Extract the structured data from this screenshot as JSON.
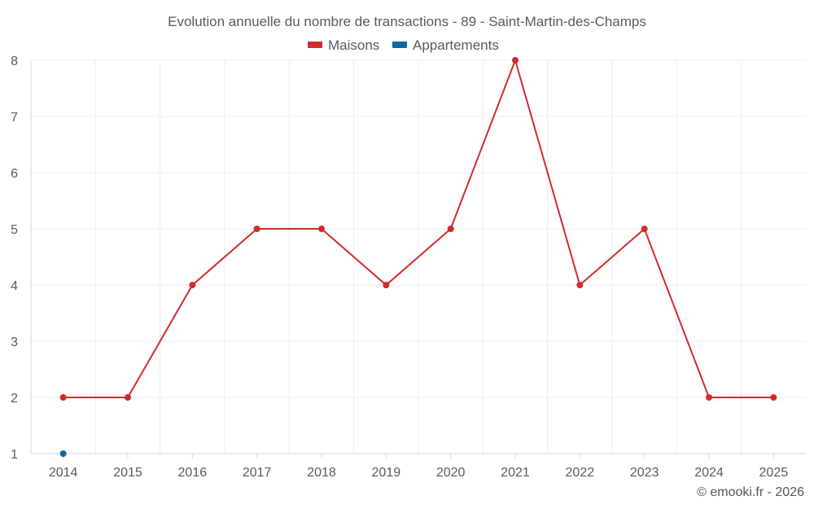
{
  "chart_data": {
    "type": "line",
    "title": "Evolution annuelle du nombre de transactions - 89 - Saint-Martin-des-Champs",
    "categories": [
      "2014",
      "2015",
      "2016",
      "2017",
      "2018",
      "2019",
      "2020",
      "2021",
      "2022",
      "2023",
      "2024",
      "2025"
    ],
    "ylim": [
      1,
      8
    ],
    "yticks": [
      1,
      2,
      3,
      4,
      5,
      6,
      7,
      8
    ],
    "grid": true,
    "legend_position": "top-center",
    "series": [
      {
        "name": "Maisons",
        "color": "#d32a2a",
        "values": [
          2,
          2,
          4,
          5,
          5,
          4,
          5,
          8,
          4,
          5,
          2,
          2
        ]
      },
      {
        "name": "Appartements",
        "color": "#0b69a3",
        "values": [
          1,
          null,
          null,
          null,
          null,
          null,
          null,
          null,
          null,
          null,
          null,
          null
        ]
      }
    ],
    "credit": "© emooki.fr - 2026"
  }
}
